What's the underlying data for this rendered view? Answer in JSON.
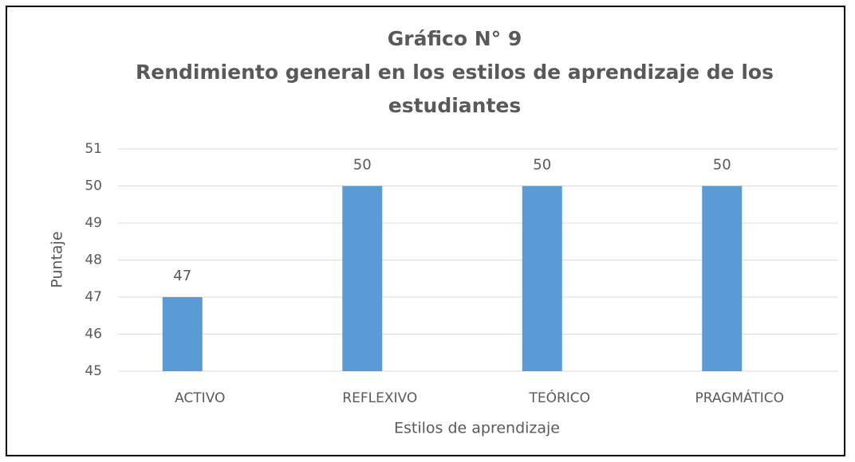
{
  "chart_data": {
    "type": "bar",
    "title": "Gráfico N° 9",
    "subtitle": "Rendimiento general en los estilos de aprendizaje de los estudiantes",
    "x_label": "Estilos de aprendizaje",
    "y_label": "Puntaje",
    "categories": [
      "ACTIVO",
      "REFLEXIVO",
      "TEÓRICO",
      "PRAGMÁTICO"
    ],
    "values": [
      47,
      50,
      50,
      50
    ],
    "color": "#5b9bd5",
    "ylim": [
      45,
      51
    ],
    "yticks": [
      45,
      46,
      47,
      48,
      49,
      50,
      51
    ],
    "grid": true
  }
}
